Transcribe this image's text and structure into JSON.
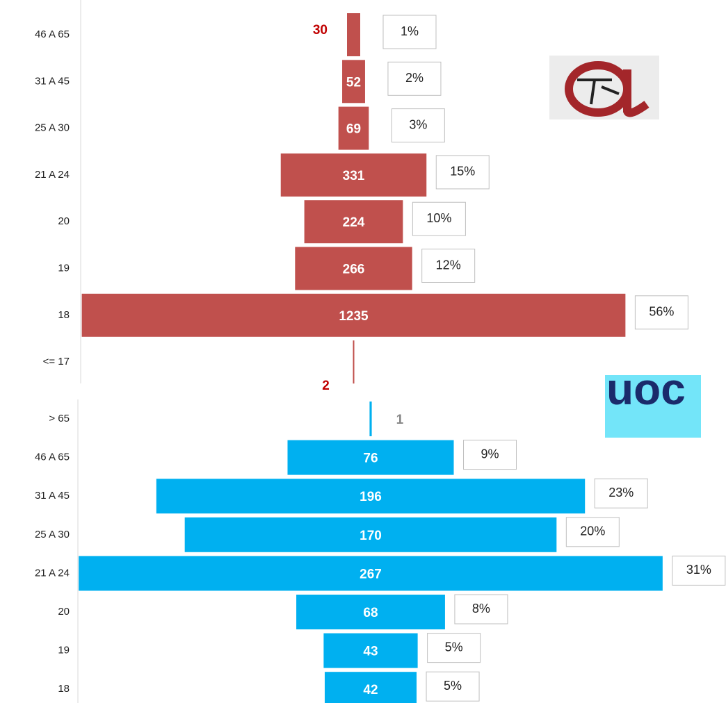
{
  "logo": "uoc",
  "chart_data": [
    {
      "type": "funnel",
      "color": "#c0504d",
      "categories": [
        "46 A 65",
        "31 A 45",
        "25 A 30",
        "21 A 24",
        "20",
        "19",
        "18",
        "<= 17"
      ],
      "values": [
        30,
        52,
        69,
        331,
        224,
        266,
        1235,
        2
      ],
      "share_labels": [
        "1%",
        "2%",
        "3%",
        "15%",
        "10%",
        "12%",
        "56%",
        null
      ]
    },
    {
      "type": "funnel",
      "color": "#00b0f0",
      "categories": [
        "> 65",
        "46 A 65",
        "31 A 45",
        "25 A 30",
        "21 A 24",
        "20",
        "19",
        "18"
      ],
      "values": [
        1,
        76,
        196,
        170,
        267,
        68,
        43,
        42
      ],
      "share_labels": [
        null,
        "9%",
        "23%",
        "20%",
        "31%",
        "8%",
        "5%",
        "5%"
      ]
    }
  ]
}
